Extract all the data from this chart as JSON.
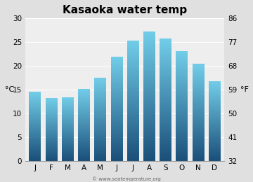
{
  "title": "Kasaoka water temp",
  "months": [
    "J",
    "F",
    "M",
    "A",
    "M",
    "J",
    "J",
    "A",
    "S",
    "O",
    "N",
    "D"
  ],
  "values_c": [
    14.5,
    13.2,
    13.3,
    15.0,
    17.4,
    21.8,
    25.2,
    27.0,
    25.6,
    23.0,
    20.3,
    16.6
  ],
  "ylim_c": [
    0,
    30
  ],
  "yticks_c": [
    0,
    5,
    10,
    15,
    20,
    25,
    30
  ],
  "yticks_f": [
    32,
    41,
    50,
    59,
    68,
    77,
    86
  ],
  "ylabel_left": "°C",
  "ylabel_right": "°F",
  "bar_color_top": "#72cde8",
  "bar_color_bottom": "#1a4f7a",
  "figure_bg": "#e0e0e0",
  "plot_bg": "#eeeeee",
  "title_fontsize": 11,
  "tick_fontsize": 7.5,
  "label_fontsize": 8,
  "watermark": "© www.seatemperature.org"
}
